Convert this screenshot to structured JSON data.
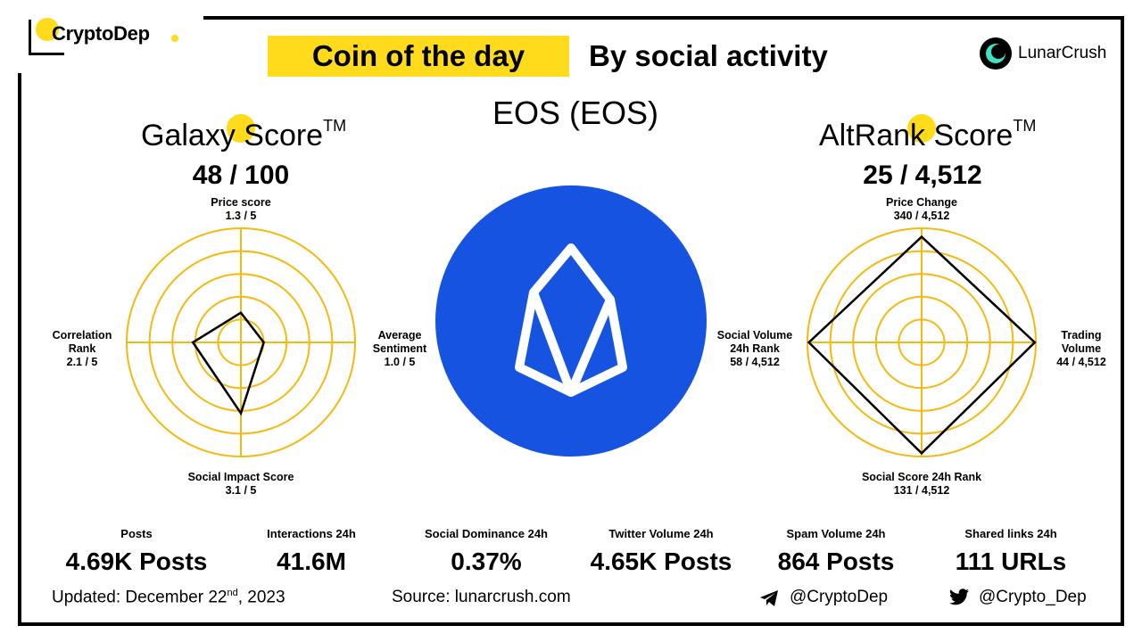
{
  "brand": {
    "name": "CryptoDep"
  },
  "header": {
    "coin_of_day": "Coin of the day",
    "subtitle": "By social activity",
    "partner": "LunarCrush"
  },
  "coin": {
    "name": "EOS (EOS)",
    "logo_color": "#1553E0"
  },
  "galaxy": {
    "title": "Galaxy Score",
    "tm": "TM",
    "value": "48 / 100",
    "labels": {
      "top_name": "Price score",
      "top_value": "1.3 / 5",
      "right_name_1": "Average",
      "right_name_2": "Sentiment",
      "right_value": "1.0 / 5",
      "bottom_name": "Social Impact Score",
      "bottom_value": "3.1 / 5",
      "left_name_1": "Correlation",
      "left_name_2": "Rank",
      "left_value": "2.1 / 5"
    }
  },
  "altrank": {
    "title": "AltRank Score",
    "tm": "TM",
    "value": "25 / 4,512",
    "labels": {
      "top_name": "Price Change",
      "top_value": "340 / 4,512",
      "right_name_1": "Trading",
      "right_name_2": "Volume",
      "right_value": "44 / 4,512",
      "bottom_name": "Social Score 24h Rank",
      "bottom_value": "131 / 4,512",
      "left_name_1": "Social Volume",
      "left_name_2": "24h Rank",
      "left_value": "58 / 4,512"
    }
  },
  "chart_data": [
    {
      "type": "radar",
      "name": "Galaxy Score",
      "axes": [
        "Price score",
        "Average Sentiment",
        "Social Impact Score",
        "Correlation Rank"
      ],
      "values": [
        1.3,
        1.0,
        3.1,
        2.1
      ],
      "max": 5,
      "rings": 5,
      "ring_color": "#F5B90F"
    },
    {
      "type": "radar",
      "name": "AltRank Score",
      "axes": [
        "Price Change",
        "Trading Volume",
        "Social Score 24h Rank",
        "Social Volume 24h Rank"
      ],
      "values": [
        340,
        44,
        131,
        58
      ],
      "max": 4512,
      "rings": 5,
      "ring_color": "#F5B90F"
    }
  ],
  "stats": [
    {
      "label": "Posts",
      "value": "4.69K Posts"
    },
    {
      "label": "Interactions 24h",
      "value": "41.6M"
    },
    {
      "label": "Social Dominance 24h",
      "value": "0.37%"
    },
    {
      "label": "Twitter Volume 24h",
      "value": "4.65K Posts"
    },
    {
      "label": "Spam Volume 24h",
      "value": "864 Posts"
    },
    {
      "label": "Shared links 24h",
      "value": "111 URLs"
    }
  ],
  "footer": {
    "updated_prefix": "Updated: December 22",
    "updated_sup": "nd",
    "updated_suffix": ", 2023",
    "source": "Source:  lunarcrush.com",
    "telegram": "@CryptoDep",
    "twitter": "@Crypto_Dep"
  },
  "colors": {
    "accent": "#FFDB1C",
    "ring": "#F5B90F",
    "coin": "#1553E0"
  }
}
